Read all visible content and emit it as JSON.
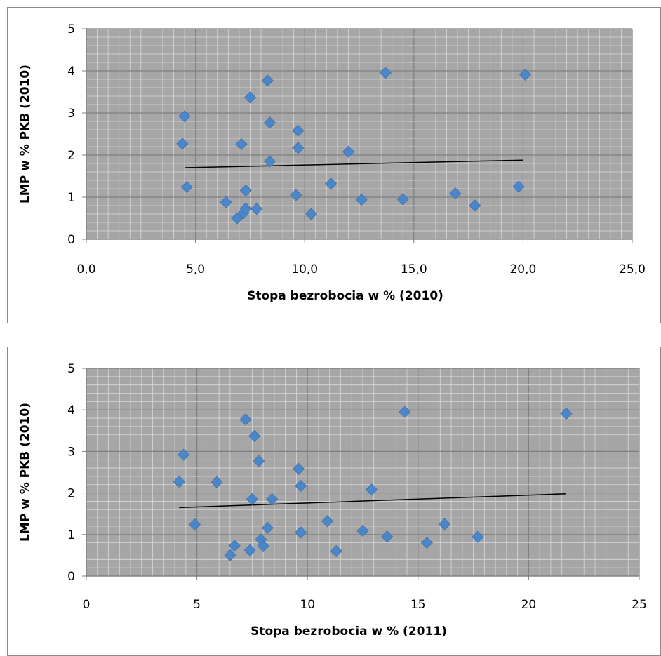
{
  "chart_data": [
    {
      "type": "scatter",
      "title": "",
      "xlabel": "Stopa bezrobocia w % (2010)",
      "ylabel": "LMP w % PKB (2010)",
      "xlim": [
        0,
        25
      ],
      "ylim": [
        0,
        5
      ],
      "x_ticks": [
        "0,0",
        "5,0",
        "10,0",
        "15,0",
        "20,0",
        "25,0"
      ],
      "y_ticks": [
        "0",
        "1",
        "2",
        "3",
        "4",
        "5"
      ],
      "grid": true,
      "plot_background": "#a6a6a6",
      "marker_color": "#4a86c8",
      "trendline": {
        "x": [
          4.5,
          20.0
        ],
        "y": [
          1.7,
          1.88
        ]
      },
      "series": [
        {
          "points": [
            [
              4.5,
              2.92
            ],
            [
              4.4,
              2.27
            ],
            [
              4.6,
              1.24
            ],
            [
              6.4,
              0.88
            ],
            [
              6.9,
              0.5
            ],
            [
              7.1,
              2.26
            ],
            [
              7.2,
              0.62
            ],
            [
              7.3,
              0.73
            ],
            [
              7.3,
              1.16
            ],
            [
              7.5,
              3.37
            ],
            [
              7.8,
              0.72
            ],
            [
              8.3,
              3.77
            ],
            [
              8.4,
              2.77
            ],
            [
              8.4,
              1.85
            ],
            [
              9.6,
              1.05
            ],
            [
              9.7,
              2.58
            ],
            [
              9.7,
              2.17
            ],
            [
              10.3,
              0.6
            ],
            [
              11.2,
              1.32
            ],
            [
              12.0,
              2.08
            ],
            [
              12.6,
              0.94
            ],
            [
              13.7,
              3.95
            ],
            [
              14.5,
              0.95
            ],
            [
              16.9,
              1.09
            ],
            [
              17.8,
              0.8
            ],
            [
              19.8,
              1.25
            ],
            [
              20.1,
              3.91
            ]
          ]
        }
      ]
    },
    {
      "type": "scatter",
      "title": "",
      "xlabel": "Stopa bezrobocia w % (2011)",
      "ylabel": "LMP w % PKB (2010)",
      "xlim": [
        0,
        25
      ],
      "ylim": [
        0,
        5
      ],
      "x_ticks": [
        "0",
        "5",
        "10",
        "15",
        "20",
        "25"
      ],
      "y_ticks": [
        "0",
        "1",
        "2",
        "3",
        "4",
        "5"
      ],
      "grid": true,
      "plot_background": "#a6a6a6",
      "marker_color": "#4a86c8",
      "trendline": {
        "x": [
          4.2,
          21.7
        ],
        "y": [
          1.65,
          1.98
        ]
      },
      "series": [
        {
          "points": [
            [
              4.4,
              2.92
            ],
            [
              4.2,
              2.27
            ],
            [
              4.9,
              1.24
            ],
            [
              5.9,
              2.26
            ],
            [
              6.5,
              0.5
            ],
            [
              6.7,
              0.73
            ],
            [
              7.2,
              3.77
            ],
            [
              7.4,
              0.62
            ],
            [
              7.5,
              1.85
            ],
            [
              7.6,
              3.37
            ],
            [
              7.8,
              2.77
            ],
            [
              7.9,
              0.88
            ],
            [
              8.0,
              0.72
            ],
            [
              8.2,
              1.16
            ],
            [
              8.4,
              1.85
            ],
            [
              9.6,
              2.58
            ],
            [
              9.7,
              2.17
            ],
            [
              9.7,
              1.05
            ],
            [
              10.9,
              1.32
            ],
            [
              11.3,
              0.6
            ],
            [
              12.5,
              1.09
            ],
            [
              12.9,
              2.08
            ],
            [
              13.6,
              0.95
            ],
            [
              14.4,
              3.95
            ],
            [
              15.4,
              0.8
            ],
            [
              16.2,
              1.25
            ],
            [
              17.7,
              0.94
            ],
            [
              21.7,
              3.91
            ]
          ]
        }
      ]
    }
  ]
}
